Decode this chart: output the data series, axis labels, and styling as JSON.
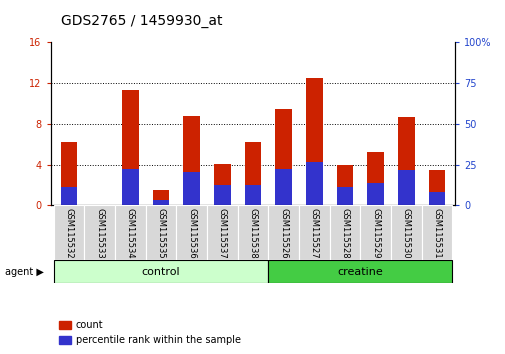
{
  "title": "GDS2765 / 1459930_at",
  "categories": [
    "GSM115532",
    "GSM115533",
    "GSM115534",
    "GSM115535",
    "GSM115536",
    "GSM115537",
    "GSM115538",
    "GSM115526",
    "GSM115527",
    "GSM115528",
    "GSM115529",
    "GSM115530",
    "GSM115531"
  ],
  "count_values": [
    6.2,
    0.05,
    11.3,
    1.5,
    8.8,
    4.1,
    6.2,
    9.5,
    12.5,
    4.0,
    5.2,
    8.7,
    3.5
  ],
  "percentile_values": [
    11.25,
    0.3,
    22.5,
    3.1,
    20.6,
    12.5,
    12.5,
    22.5,
    26.9,
    11.25,
    13.75,
    21.9,
    8.1
  ],
  "ylim_left": [
    0,
    16
  ],
  "ylim_right": [
    0,
    100
  ],
  "yticks_left": [
    0,
    4,
    8,
    12,
    16
  ],
  "yticks_right": [
    0,
    25,
    50,
    75,
    100
  ],
  "count_color": "#cc2200",
  "percentile_color": "#3333cc",
  "bar_width": 0.55,
  "bg_plot": "#ffffff",
  "group1_label": "control",
  "group2_label": "creatine",
  "group1_indices": [
    0,
    1,
    2,
    3,
    4,
    5,
    6
  ],
  "group2_indices": [
    7,
    8,
    9,
    10,
    11,
    12
  ],
  "group1_color": "#ccffcc",
  "group2_color": "#44cc44",
  "agent_label": "agent",
  "legend_count": "count",
  "legend_percentile": "percentile rank within the sample",
  "title_fontsize": 10,
  "tick_fontsize": 7,
  "cat_fontsize": 6,
  "group_fontsize": 8,
  "left_tick_color": "#cc2200",
  "right_tick_color": "#2244cc"
}
